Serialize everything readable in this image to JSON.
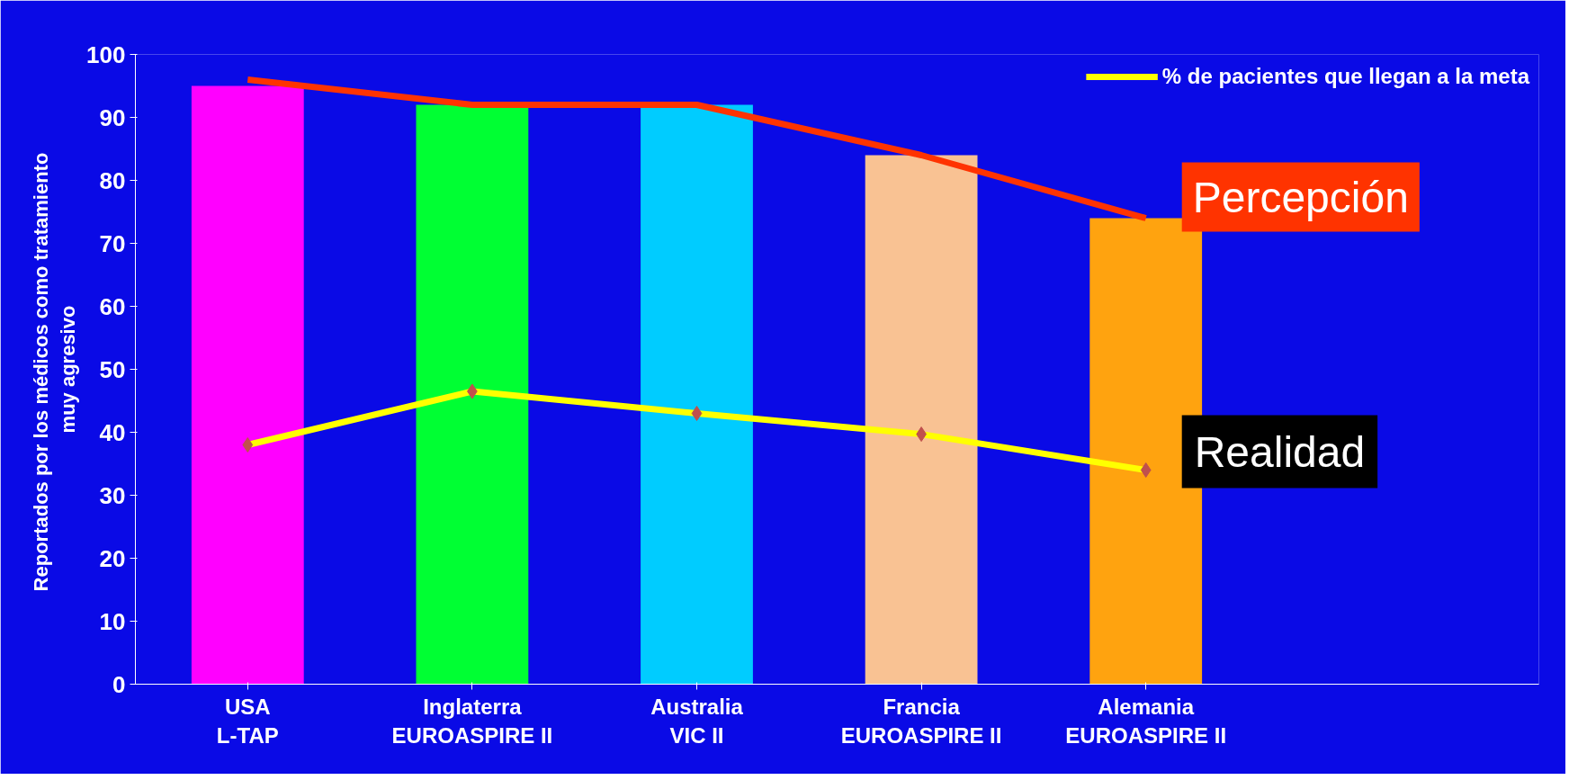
{
  "chart_data": {
    "type": "bar",
    "ylabel": "Reportados por los médicos como  tratamiento\nmuy agresivo",
    "categories": [
      "USA\nL-TAP",
      "Inglaterra\nEUROASPIRE II",
      "Australia\nVIC II",
      "Francia\nEUROASPIRE II",
      "Alemania\nEUROASPIRE II"
    ],
    "values": [
      95,
      92,
      92,
      84,
      74
    ],
    "colors": [
      "#ff00ff",
      "#00ff33",
      "#00ccff",
      "#f9c293",
      "#ffa30f"
    ],
    "series": [
      {
        "type": "line",
        "name": "Percepción",
        "color": "#ff3300",
        "values": [
          96,
          92,
          92,
          84,
          74
        ],
        "marker": "none"
      },
      {
        "type": "line",
        "name": "% de pacientes que llegan a la meta",
        "color": "#ffff00",
        "values": [
          38,
          46.5,
          43,
          39.7,
          34
        ],
        "marker": "diamond"
      }
    ],
    "annotations": [
      {
        "text": "Realidad",
        "x": "Alemania\nEUROASPIRE II",
        "y": 34
      }
    ],
    "ylim": [
      0,
      100
    ],
    "yticks": [
      0,
      10,
      20,
      30,
      40,
      50,
      60,
      70,
      80,
      90,
      100
    ],
    "grid": false,
    "legend": "top right"
  }
}
